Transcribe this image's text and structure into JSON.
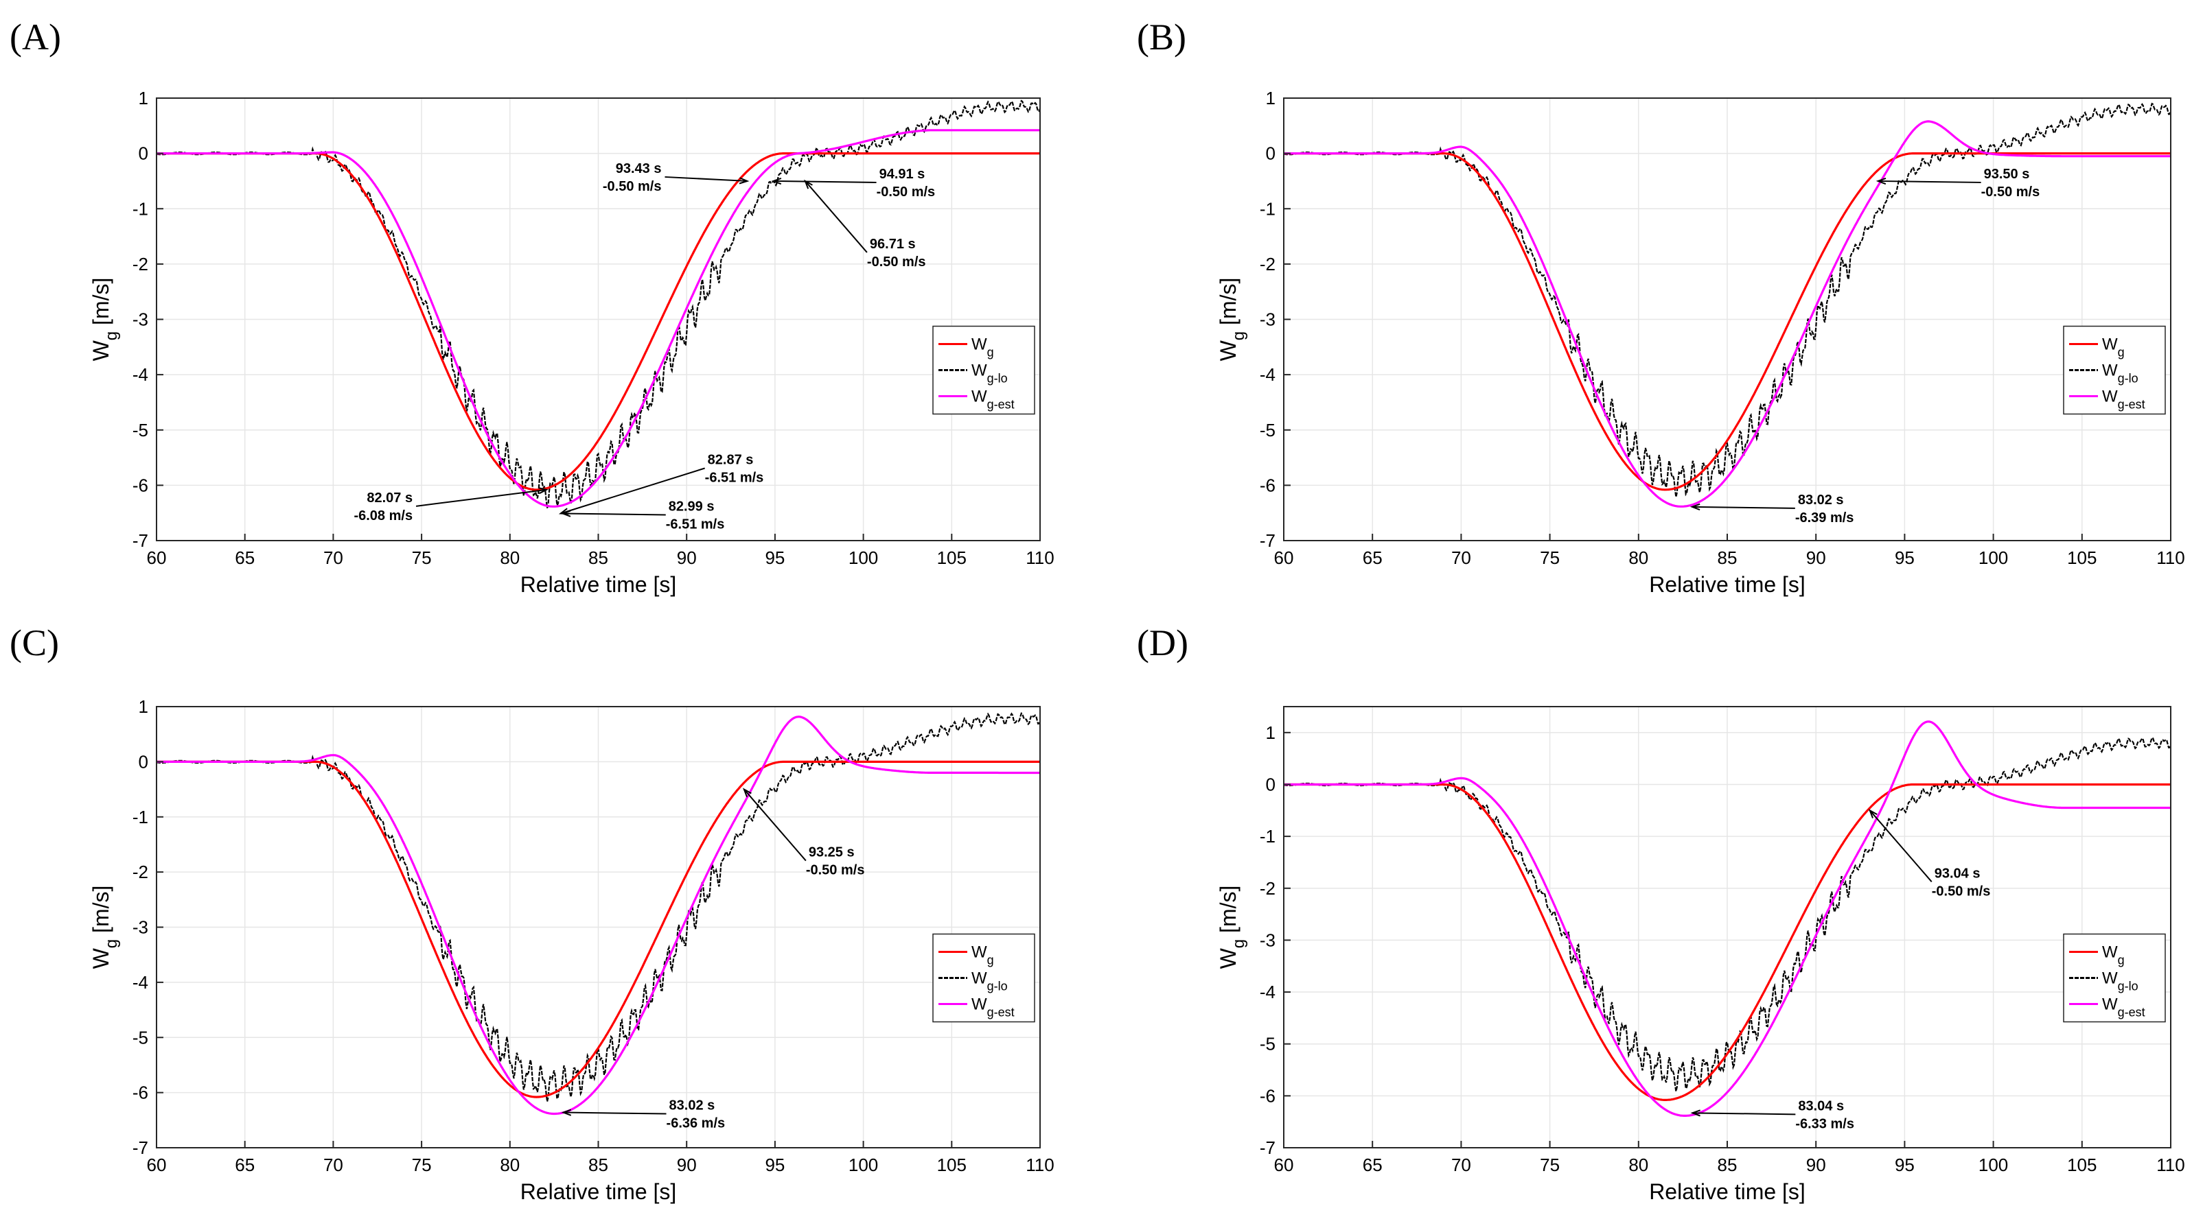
{
  "colors": {
    "wg": "#ff0000",
    "wglo": "#000000",
    "wgest": "#ff00ff",
    "grid": "#e6e6e6",
    "axis": "#262626"
  },
  "legend": [
    {
      "main": "W",
      "sub": "g"
    },
    {
      "main": "W",
      "sub": "g-lo"
    },
    {
      "main": "W",
      "sub": "g-est"
    }
  ],
  "chart_data": [
    {
      "panel": "(A)",
      "type": "line",
      "xlabel": "Relative time [s]",
      "ylabel_main": "W",
      "ylabel_sub": "g",
      "ylabel_unit": " [m/s]",
      "xlim": [
        60,
        110
      ],
      "ylim": [
        -7,
        1
      ],
      "xticks": [
        60,
        65,
        70,
        75,
        80,
        85,
        90,
        95,
        100,
        105,
        110
      ],
      "yticks": [
        1,
        0,
        -1,
        -2,
        -3,
        -4,
        -5,
        -6,
        -7
      ],
      "grid": true,
      "legend_position": "right-middle",
      "series_params": {
        "est_delay": 0.95,
        "est_overshoot": 0.0,
        "est_final": 0.42,
        "lo_final": 0.85,
        "lo_min": -6.1
      },
      "annotations": [
        {
          "line1": "93.43 s",
          "line2": "-0.50 m/s",
          "x": 93.43,
          "y": -0.5,
          "side": "left"
        },
        {
          "line1": "94.91 s",
          "line2": "-0.50 m/s",
          "x": 94.91,
          "y": -0.5,
          "side": "right"
        },
        {
          "line1": "96.71 s",
          "line2": "-0.50 m/s",
          "x": 96.71,
          "y": -0.5,
          "side": "below-right"
        },
        {
          "line1": "82.07 s",
          "line2": "-6.08 m/s",
          "x": 82.07,
          "y": -6.08,
          "side": "below-left"
        },
        {
          "line1": "82.87 s",
          "line2": "-6.51 m/s",
          "x": 82.87,
          "y": -6.51,
          "side": "upper-right"
        },
        {
          "line1": "82.99 s",
          "line2": "-6.51 m/s",
          "x": 82.99,
          "y": -6.51,
          "side": "right"
        }
      ]
    },
    {
      "panel": "(B)",
      "type": "line",
      "xlabel": "Relative time [s]",
      "ylabel_main": "W",
      "ylabel_sub": "g",
      "ylabel_unit": " [m/s]",
      "xlim": [
        60,
        110
      ],
      "ylim": [
        -7,
        1
      ],
      "xticks": [
        60,
        65,
        70,
        75,
        80,
        85,
        90,
        95,
        100,
        105,
        110
      ],
      "yticks": [
        1,
        0,
        -1,
        -2,
        -3,
        -4,
        -5,
        -6,
        -7
      ],
      "grid": true,
      "legend_position": "right-middle",
      "series_params": {
        "est_delay": 0.9,
        "est_overshoot": 0.58,
        "est_final": -0.05,
        "lo_final": 0.8,
        "lo_min": -5.9
      },
      "annotations": [
        {
          "line1": "93.50 s",
          "line2": "-0.50 m/s",
          "x": 93.5,
          "y": -0.5,
          "side": "right"
        },
        {
          "line1": "83.02 s",
          "line2": "-6.39 m/s",
          "x": 83.02,
          "y": -6.39,
          "side": "right"
        }
      ]
    },
    {
      "panel": "(C)",
      "type": "line",
      "xlabel": "Relative time [s]",
      "ylabel_main": "W",
      "ylabel_sub": "g",
      "ylabel_unit": " [m/s]",
      "xlim": [
        60,
        110
      ],
      "ylim": [
        -7,
        1
      ],
      "xticks": [
        60,
        65,
        70,
        75,
        80,
        85,
        90,
        95,
        100,
        105,
        110
      ],
      "yticks": [
        1,
        0,
        -1,
        -2,
        -3,
        -4,
        -5,
        -6,
        -7
      ],
      "grid": true,
      "legend_position": "right-middle",
      "series_params": {
        "est_delay": 1.0,
        "est_overshoot": 0.82,
        "est_final": -0.2,
        "lo_final": 0.78,
        "lo_min": -5.85
      },
      "annotations": [
        {
          "line1": "93.25 s",
          "line2": "-0.50 m/s",
          "x": 93.25,
          "y": -0.5,
          "side": "below-right"
        },
        {
          "line1": "83.02 s",
          "line2": "-6.36 m/s",
          "x": 83.02,
          "y": -6.36,
          "side": "right"
        }
      ]
    },
    {
      "panel": "(D)",
      "type": "line",
      "xlabel": "Relative time [s]",
      "ylabel_main": "W",
      "ylabel_sub": "g",
      "ylabel_unit": " [m/s]",
      "xlim": [
        60,
        110
      ],
      "ylim": [
        -7,
        1.5
      ],
      "xticks": [
        60,
        65,
        70,
        75,
        80,
        85,
        90,
        95,
        100,
        105,
        110
      ],
      "yticks": [
        1,
        0,
        -1,
        -2,
        -3,
        -4,
        -5,
        -6,
        -7
      ],
      "grid": true,
      "legend_position": "right-middle",
      "series_params": {
        "est_delay": 1.1,
        "est_overshoot": 1.22,
        "est_final": -0.45,
        "lo_final": 0.8,
        "lo_min": -5.6
      },
      "annotations": [
        {
          "line1": "93.04 s",
          "line2": "-0.50 m/s",
          "x": 93.04,
          "y": -0.5,
          "side": "below-right"
        },
        {
          "line1": "83.04 s",
          "line2": "-6.33 m/s",
          "x": 83.04,
          "y": -6.33,
          "side": "right"
        }
      ]
    }
  ]
}
